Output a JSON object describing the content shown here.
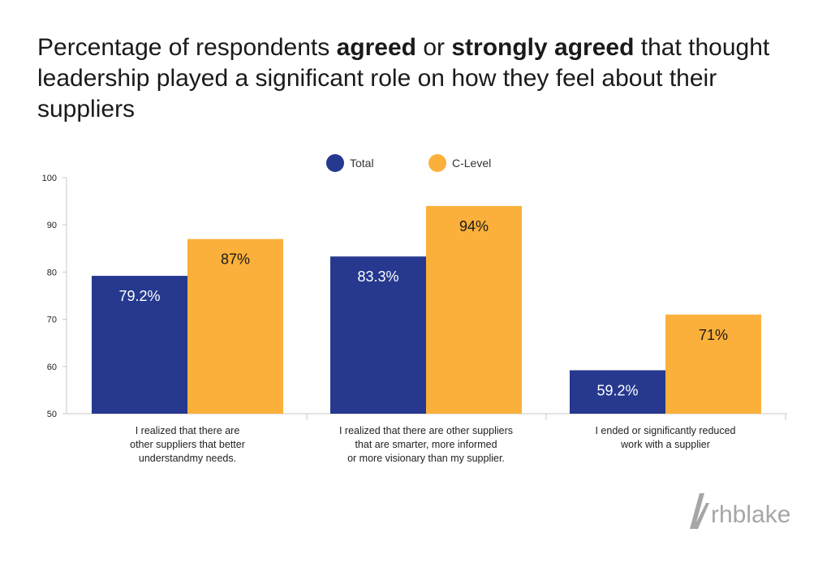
{
  "title": {
    "part1": "Percentage of respondents ",
    "bold1": "agreed",
    "part2": " or ",
    "bold2": "strongly agreed",
    "part3": " that thought leadership played a significant role on how they feel about their suppliers"
  },
  "colors": {
    "total": "#26398f",
    "clevel": "#fbb03b",
    "axis": "#c8c8c8",
    "logo": "#a6a6a6"
  },
  "logo": {
    "text": "rhblake"
  },
  "chart_data": {
    "type": "bar",
    "title": "Percentage of respondents agreed or strongly agreed that thought leadership played a significant role on how they feel about their suppliers",
    "xlabel": "",
    "ylabel": "",
    "ylim": [
      50,
      100
    ],
    "yticks": [
      "50",
      "60",
      "70",
      "80",
      "90",
      "100"
    ],
    "grid": false,
    "legend_position": "top-center",
    "categories": [
      [
        "I realized that there are",
        "other suppliers that better",
        "understandmy needs."
      ],
      [
        "I realized that there are other suppliers",
        "that are smarter, more informed",
        "or more visionary than my supplier."
      ],
      [
        "I ended or significantly reduced",
        "work with a supplier"
      ]
    ],
    "series": [
      {
        "name": "Total",
        "values": [
          79.2,
          83.3,
          59.2
        ],
        "labels": [
          "79.2%",
          "83.3%",
          "59.2%"
        ]
      },
      {
        "name": "C-Level",
        "values": [
          87,
          94,
          71
        ],
        "labels": [
          "87%",
          "94%",
          "71%"
        ]
      }
    ]
  }
}
